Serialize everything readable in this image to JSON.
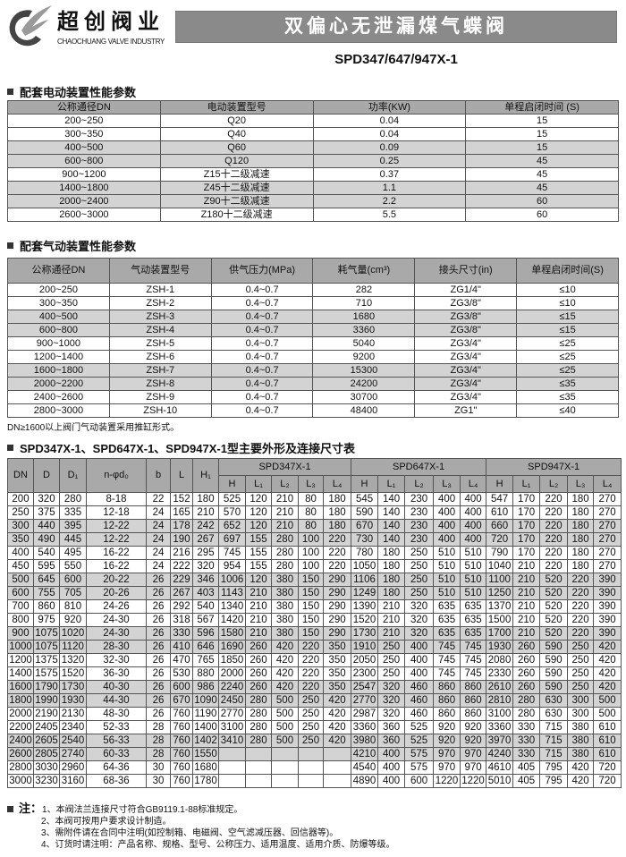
{
  "header": {
    "logo_cn": "超创阀业",
    "logo_en": "CHAOCHUANG VALVE INDUSTRY",
    "logo_small": "超创",
    "title": "双偏心无泄漏煤气蝶阀",
    "model": "SPD347/647/947X-1"
  },
  "electric": {
    "heading": "配套电动装置性能参数",
    "columns": [
      "公称通径DN",
      "电动装置型号",
      "功率(KW)",
      "单程启闭时间 (S)"
    ],
    "rows": [
      [
        "200~250",
        "Q20",
        "0.04",
        "15"
      ],
      [
        "300~350",
        "Q40",
        "0.04",
        "15"
      ],
      [
        "400~500",
        "Q60",
        "0.09",
        "15"
      ],
      [
        "600~800",
        "Q120",
        "0.25",
        "45"
      ],
      [
        "900~1200",
        "Z15十二级减速",
        "0.37",
        "45"
      ],
      [
        "1400~1800",
        "Z45十二级减速",
        "1.1",
        "45"
      ],
      [
        "2000~2400",
        "Z90十二级减速",
        "2.2",
        "60"
      ],
      [
        "2600~3000",
        "Z180十二级减速",
        "5.5",
        "60"
      ]
    ],
    "shaded": [
      2,
      3,
      5,
      6
    ]
  },
  "pneumatic": {
    "heading": "配套气动装置性能参数",
    "columns": [
      "公称通径DN",
      "气动装置型号",
      "供气压力(MPa)",
      "耗气量(cm³)",
      "接头尺寸(in)",
      "单程启闭时间(S)"
    ],
    "rows": [
      [
        "200~250",
        "ZSH-1",
        "0.4~0.7",
        "282",
        "ZG1/4\"",
        "≤10"
      ],
      [
        "300~350",
        "ZSH-2",
        "0.4~0.7",
        "710",
        "ZG3/8\"",
        "≤10"
      ],
      [
        "400~500",
        "ZSH-3",
        "0.4~0.7",
        "1680",
        "ZG3/8\"",
        "≤15"
      ],
      [
        "600~800",
        "ZSH-4",
        "0.4~0.7",
        "3360",
        "ZG3/8\"",
        "≤15"
      ],
      [
        "900~1000",
        "ZSH-5",
        "0.4~0.7",
        "5040",
        "ZG3/4\"",
        "≤25"
      ],
      [
        "1200~1400",
        "ZSH-6",
        "0.4~0.7",
        "9200",
        "ZG3/4\"",
        "≤25"
      ],
      [
        "1600~1800",
        "ZSH-7",
        "0.4~0.7",
        "15300",
        "ZG3/4\"",
        "≤25"
      ],
      [
        "2000~2200",
        "ZSH-8",
        "0.4~0.7",
        "24200",
        "ZG3/4\"",
        "≤35"
      ],
      [
        "2400~2600",
        "ZSH-9",
        "0.4~0.7",
        "30700",
        "ZG3/4\"",
        "≤35"
      ],
      [
        "2800~3000",
        "ZSH-10",
        "0.4~0.7",
        "48400",
        "ZG1\"",
        "≤40"
      ]
    ],
    "shaded": [
      2,
      3,
      6,
      7
    ],
    "note": "DN≥1600以上阀门气动装置采用推缸形式。"
  },
  "dimensions": {
    "heading": "SPD347X-1、SPD647X-1、SPD947X-1型主要外形及连接尺寸表",
    "fixed_columns": [
      "DN",
      "D",
      "D₁",
      "n-φd₀",
      "b",
      "L",
      "H₁"
    ],
    "groups": [
      "SPD347X-1",
      "SPD647X-1",
      "SPD947X-1"
    ],
    "sub_columns": [
      "H",
      "L₁",
      "L₂",
      "L₃",
      "L₄"
    ],
    "rows": [
      [
        "200",
        "320",
        "280",
        "8-18",
        "22",
        "152",
        "180",
        "525",
        "120",
        "210",
        "80",
        "180",
        "545",
        "140",
        "230",
        "400",
        "400",
        "547",
        "170",
        "220",
        "180",
        "270"
      ],
      [
        "250",
        "375",
        "335",
        "12-18",
        "24",
        "165",
        "210",
        "570",
        "120",
        "210",
        "80",
        "180",
        "590",
        "140",
        "230",
        "400",
        "400",
        "610",
        "170",
        "220",
        "180",
        "270"
      ],
      [
        "300",
        "440",
        "395",
        "12-22",
        "24",
        "178",
        "242",
        "652",
        "120",
        "210",
        "80",
        "180",
        "670",
        "140",
        "230",
        "400",
        "400",
        "660",
        "170",
        "220",
        "180",
        "270"
      ],
      [
        "350",
        "490",
        "445",
        "12-22",
        "24",
        "190",
        "267",
        "697",
        "155",
        "280",
        "100",
        "220",
        "730",
        "140",
        "230",
        "400",
        "400",
        "720",
        "170",
        "220",
        "180",
        "270"
      ],
      [
        "400",
        "540",
        "495",
        "16-22",
        "24",
        "216",
        "295",
        "745",
        "155",
        "280",
        "100",
        "220",
        "780",
        "180",
        "250",
        "510",
        "510",
        "790",
        "170",
        "220",
        "180",
        "270"
      ],
      [
        "450",
        "595",
        "550",
        "16-22",
        "24",
        "222",
        "320",
        "954",
        "155",
        "280",
        "100",
        "220",
        "1050",
        "180",
        "250",
        "510",
        "510",
        "1040",
        "210",
        "220",
        "180",
        "270"
      ],
      [
        "500",
        "645",
        "600",
        "20-22",
        "26",
        "229",
        "346",
        "1006",
        "120",
        "380",
        "150",
        "290",
        "1106",
        "180",
        "250",
        "510",
        "510",
        "1100",
        "210",
        "520",
        "220",
        "390"
      ],
      [
        "600",
        "755",
        "705",
        "20-26",
        "26",
        "267",
        "403",
        "1143",
        "210",
        "380",
        "150",
        "290",
        "1249",
        "180",
        "250",
        "510",
        "510",
        "1250",
        "210",
        "520",
        "220",
        "390"
      ],
      [
        "700",
        "860",
        "810",
        "24-26",
        "26",
        "292",
        "540",
        "1340",
        "210",
        "380",
        "150",
        "290",
        "1390",
        "210",
        "320",
        "635",
        "635",
        "1370",
        "210",
        "520",
        "220",
        "390"
      ],
      [
        "800",
        "975",
        "920",
        "24-30",
        "26",
        "318",
        "567",
        "1420",
        "210",
        "380",
        "150",
        "290",
        "1520",
        "210",
        "320",
        "635",
        "635",
        "1500",
        "210",
        "520",
        "220",
        "390"
      ],
      [
        "900",
        "1075",
        "1020",
        "24-30",
        "26",
        "330",
        "596",
        "1580",
        "210",
        "380",
        "150",
        "290",
        "1730",
        "210",
        "320",
        "635",
        "635",
        "1700",
        "210",
        "520",
        "220",
        "390"
      ],
      [
        "1000",
        "1075",
        "1120",
        "28-30",
        "26",
        "410",
        "646",
        "1690",
        "260",
        "420",
        "220",
        "350",
        "1910",
        "250",
        "400",
        "745",
        "745",
        "1930",
        "260",
        "590",
        "250",
        "420"
      ],
      [
        "1200",
        "1375",
        "1320",
        "32-30",
        "26",
        "470",
        "765",
        "1850",
        "260",
        "420",
        "220",
        "350",
        "2050",
        "250",
        "400",
        "745",
        "745",
        "2080",
        "260",
        "590",
        "250",
        "420"
      ],
      [
        "1400",
        "1575",
        "1520",
        "36-30",
        "26",
        "530",
        "880",
        "2000",
        "260",
        "420",
        "220",
        "350",
        "2300",
        "250",
        "400",
        "745",
        "745",
        "2330",
        "260",
        "590",
        "250",
        "420"
      ],
      [
        "1600",
        "1790",
        "1730",
        "40-30",
        "26",
        "600",
        "986",
        "2240",
        "260",
        "420",
        "220",
        "350",
        "2547",
        "320",
        "460",
        "860",
        "860",
        "2610",
        "260",
        "590",
        "250",
        "420"
      ],
      [
        "1800",
        "1990",
        "1930",
        "44-30",
        "26",
        "670",
        "1090",
        "2450",
        "280",
        "500",
        "250",
        "420",
        "2770",
        "320",
        "460",
        "860",
        "860",
        "2810",
        "280",
        "630",
        "300",
        "500"
      ],
      [
        "2000",
        "2190",
        "2130",
        "48-30",
        "26",
        "760",
        "1190",
        "2770",
        "280",
        "500",
        "250",
        "420",
        "2987",
        "320",
        "460",
        "860",
        "860",
        "3100",
        "280",
        "630",
        "300",
        "500"
      ],
      [
        "2200",
        "2405",
        "2340",
        "52-33",
        "28",
        "760",
        "1400",
        "3100",
        "280",
        "500",
        "250",
        "420",
        "3360",
        "360",
        "525",
        "920",
        "920",
        "3360",
        "330",
        "715",
        "380",
        "610"
      ],
      [
        "2400",
        "2605",
        "2540",
        "56-33",
        "28",
        "760",
        "1402",
        "3410",
        "280",
        "500",
        "250",
        "420",
        "3980",
        "360",
        "525",
        "920",
        "920",
        "3970",
        "330",
        "715",
        "380",
        "610"
      ],
      [
        "2600",
        "2805",
        "2740",
        "60-33",
        "28",
        "760",
        "1550",
        "",
        "",
        "",
        "",
        "",
        "4210",
        "400",
        "575",
        "970",
        "970",
        "4240",
        "330",
        "715",
        "380",
        "610"
      ],
      [
        "2800",
        "3030",
        "2960",
        "64-36",
        "30",
        "760",
        "1680",
        "",
        "",
        "",
        "",
        "",
        "4540",
        "400",
        "575",
        "970",
        "970",
        "4610",
        "405",
        "795",
        "420",
        "720"
      ],
      [
        "3000",
        "3230",
        "3160",
        "68-36",
        "30",
        "760",
        "1780",
        "",
        "",
        "",
        "",
        "",
        "4890",
        "400",
        "600",
        "1220",
        "1220",
        "5010",
        "405",
        "795",
        "420",
        "720"
      ]
    ],
    "shaded": [
      2,
      3,
      6,
      7,
      10,
      11,
      14,
      15,
      18,
      19
    ]
  },
  "notes": {
    "label": "注：",
    "items": [
      "1、本阀法兰连接尺寸符合GB9119.1-88标准规定。",
      "2、本阀可按用户要求设计制造。",
      "3、需附件请在合同中注明(如控制箱、电磁阀、空气滤减压器、回信器等)。",
      "4、订货时请注明：产品名称、规格、型号、公称压力、适用温度、适用介质、防爆等级。"
    ]
  },
  "colors": {
    "banner": "#8a8a8a",
    "header_cell": "#a9a9a9",
    "shaded_row": "#d3d3d3"
  }
}
